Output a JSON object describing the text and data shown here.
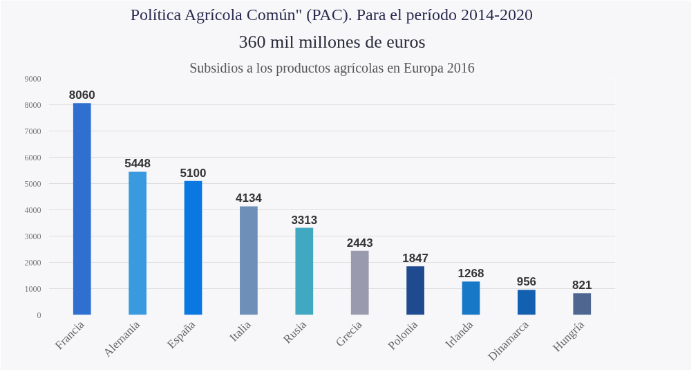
{
  "chart_data": {
    "type": "bar",
    "title": "Política Agrícola Común\" (PAC). Para el período 2014-2020",
    "subtitle": "360 mil millones de euros",
    "annotations": [
      "Subsidios a los productos agrícolas en Europa 2016"
    ],
    "categories": [
      "Francia",
      "Alemania",
      "España",
      "Italia",
      "Rusia",
      "Grecia",
      "Polonia",
      "Irlanda",
      "Dinamarca",
      "Hungría"
    ],
    "values": [
      8060,
      5448,
      5100,
      4134,
      3313,
      2443,
      1847,
      1268,
      956,
      821
    ],
    "colors": [
      "#2f6fd0",
      "#3a9ae0",
      "#0a78e0",
      "#6e8fb8",
      "#40a8c0",
      "#9a9aae",
      "#1f4a90",
      "#1878c8",
      "#1460b0",
      "#4e6690"
    ],
    "ylim": [
      0,
      9000
    ],
    "yticks": [
      0,
      1000,
      2000,
      3000,
      4000,
      5000,
      6000,
      7000,
      8000,
      9000
    ],
    "grid": "y",
    "data_labels": true
  }
}
